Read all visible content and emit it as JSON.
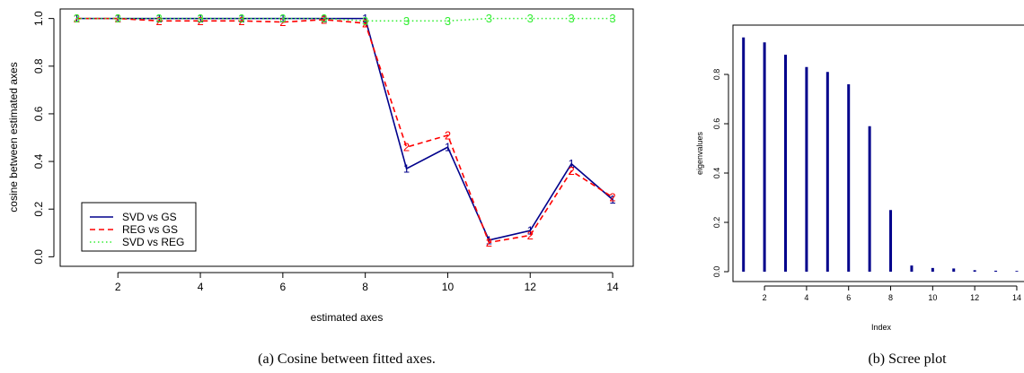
{
  "figure": {
    "caption_a": "(a) Cosine between fitted axes.",
    "caption_b": "(b) Scree plot"
  },
  "chart_data": [
    {
      "type": "line",
      "title": "",
      "xlabel": "estimated axes",
      "ylabel": "cosine between estimated axes",
      "x": [
        1,
        2,
        3,
        4,
        5,
        6,
        7,
        8,
        9,
        10,
        11,
        12,
        13,
        14
      ],
      "xticks": [
        2,
        4,
        6,
        8,
        10,
        12,
        14
      ],
      "yticks": [
        0.0,
        0.2,
        0.4,
        0.6,
        0.8,
        1.0
      ],
      "ytick_labels": [
        "0.0",
        "0.2",
        "0.4",
        "0.6",
        "0.8",
        "1.0"
      ],
      "xlim": [
        0.6,
        14.5
      ],
      "ylim": [
        -0.04,
        1.04
      ],
      "legend_position": "bottom-left",
      "series": [
        {
          "name": "SVD vs GS",
          "marker": "1",
          "color": "#00008B",
          "dash": "solid",
          "values": [
            1.0,
            1.0,
            1.0,
            1.0,
            1.0,
            1.0,
            1.0,
            1.0,
            0.37,
            0.46,
            0.07,
            0.11,
            0.39,
            0.24
          ]
        },
        {
          "name": "REG vs GS",
          "marker": "2",
          "color": "#FF0000",
          "dash": "dashed",
          "values": [
            1.0,
            1.0,
            0.99,
            0.99,
            0.99,
            0.985,
            0.995,
            0.98,
            0.46,
            0.51,
            0.06,
            0.09,
            0.36,
            0.25
          ]
        },
        {
          "name": "SVD vs REG",
          "marker": "3",
          "color": "#33EE33",
          "dash": "dotted",
          "values": [
            1.0,
            1.0,
            1.0,
            1.0,
            1.0,
            1.0,
            1.0,
            0.99,
            0.99,
            0.99,
            1.0,
            1.0,
            1.0,
            1.0
          ]
        }
      ]
    },
    {
      "type": "bar",
      "title": "",
      "xlabel": "Index",
      "ylabel": "eigenvalues",
      "x": [
        1,
        2,
        3,
        4,
        5,
        6,
        7,
        8,
        9,
        10,
        11,
        12,
        13,
        14
      ],
      "values": [
        0.95,
        0.93,
        0.88,
        0.83,
        0.81,
        0.76,
        0.59,
        0.25,
        0.025,
        0.015,
        0.013,
        0.006,
        0.004,
        0.003
      ],
      "xticks": [
        2,
        4,
        6,
        8,
        10,
        12,
        14
      ],
      "yticks": [
        0.0,
        0.2,
        0.4,
        0.6,
        0.8
      ],
      "ytick_labels": [
        "0.0",
        "0.2",
        "0.4",
        "0.6",
        "0.8"
      ],
      "xlim": [
        0.5,
        14.6
      ],
      "ylim": [
        -0.04,
        1.0
      ],
      "color": "#00008B"
    }
  ]
}
